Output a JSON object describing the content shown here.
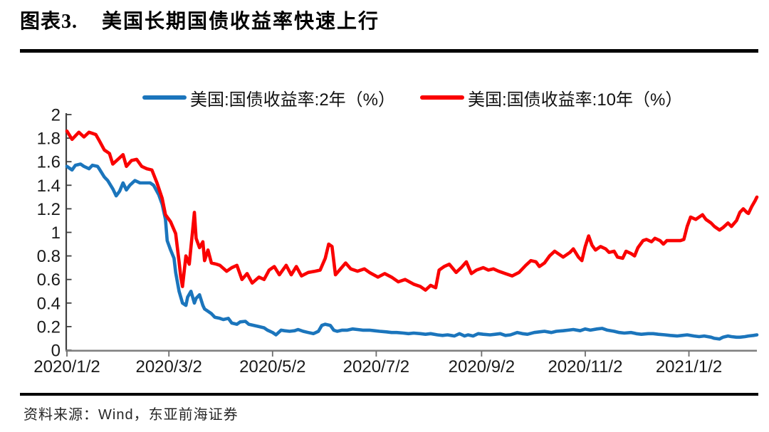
{
  "page": {
    "title_index": "图表3.",
    "title": "美国长期国债收益率快速上行",
    "source": "资料来源：Wind，东亚前海证券"
  },
  "chart_data": {
    "type": "line",
    "title": "美国长期国债收益率快速上行",
    "legend_position": "top",
    "grid": false,
    "x_axis": {
      "unit": "days since 2020/1/2",
      "range": [
        0,
        406
      ],
      "ticks": [
        0,
        60,
        121,
        182,
        244,
        305,
        366
      ],
      "tick_labels": [
        "2020/1/2",
        "2020/3/2",
        "2020/5/2",
        "2020/7/2",
        "2020/9/2",
        "2020/11/2",
        "2021/1/2"
      ]
    },
    "y_axis": {
      "range": [
        0,
        2
      ],
      "tick_step": 0.2,
      "tick_labels": [
        "0",
        "0.2",
        "0.4",
        "0.6",
        "0.8",
        "1",
        "1.2",
        "1.4",
        "1.6",
        "1.8",
        "2"
      ]
    },
    "axis_colors": {
      "y_axis_line": "#404040",
      "x_axis_line": "#808080"
    },
    "series": [
      {
        "name": "美国:国债收益率:2年（%）",
        "color": "#1B75BC",
        "points": [
          [
            0,
            1.56
          ],
          [
            3,
            1.53
          ],
          [
            5,
            1.57
          ],
          [
            8,
            1.58
          ],
          [
            10,
            1.56
          ],
          [
            13,
            1.54
          ],
          [
            15,
            1.57
          ],
          [
            18,
            1.56
          ],
          [
            19,
            1.54
          ],
          [
            22,
            1.47
          ],
          [
            24,
            1.44
          ],
          [
            27,
            1.37
          ],
          [
            29,
            1.31
          ],
          [
            31,
            1.35
          ],
          [
            33,
            1.42
          ],
          [
            35,
            1.36
          ],
          [
            37,
            1.4
          ],
          [
            40,
            1.44
          ],
          [
            43,
            1.42
          ],
          [
            46,
            1.42
          ],
          [
            49,
            1.42
          ],
          [
            51,
            1.4
          ],
          [
            54,
            1.32
          ],
          [
            56,
            1.24
          ],
          [
            58,
            1.11
          ],
          [
            59,
            0.93
          ],
          [
            61,
            0.85
          ],
          [
            63,
            0.78
          ],
          [
            64,
            0.66
          ],
          [
            66,
            0.5
          ],
          [
            68,
            0.4
          ],
          [
            70,
            0.38
          ],
          [
            71,
            0.45
          ],
          [
            73,
            0.5
          ],
          [
            75,
            0.4
          ],
          [
            76,
            0.44
          ],
          [
            78,
            0.47
          ],
          [
            80,
            0.38
          ],
          [
            81,
            0.35
          ],
          [
            83,
            0.33
          ],
          [
            85,
            0.31
          ],
          [
            87,
            0.28
          ],
          [
            90,
            0.27
          ],
          [
            92,
            0.26
          ],
          [
            95,
            0.27
          ],
          [
            97,
            0.23
          ],
          [
            100,
            0.22
          ],
          [
            102,
            0.24
          ],
          [
            105,
            0.245
          ],
          [
            107,
            0.22
          ],
          [
            110,
            0.21
          ],
          [
            113,
            0.2
          ],
          [
            116,
            0.19
          ],
          [
            118,
            0.17
          ],
          [
            121,
            0.15
          ],
          [
            123,
            0.13
          ],
          [
            126,
            0.17
          ],
          [
            128,
            0.165
          ],
          [
            131,
            0.16
          ],
          [
            134,
            0.165
          ],
          [
            136,
            0.175
          ],
          [
            139,
            0.16
          ],
          [
            142,
            0.15
          ],
          [
            145,
            0.14
          ],
          [
            148,
            0.16
          ],
          [
            150,
            0.21
          ],
          [
            152,
            0.22
          ],
          [
            155,
            0.21
          ],
          [
            157,
            0.17
          ],
          [
            159,
            0.16
          ],
          [
            162,
            0.17
          ],
          [
            165,
            0.17
          ],
          [
            168,
            0.18
          ],
          [
            171,
            0.175
          ],
          [
            174,
            0.17
          ],
          [
            178,
            0.17
          ],
          [
            181,
            0.165
          ],
          [
            184,
            0.16
          ],
          [
            188,
            0.155
          ],
          [
            191,
            0.15
          ],
          [
            194,
            0.15
          ],
          [
            198,
            0.145
          ],
          [
            201,
            0.14
          ],
          [
            204,
            0.145
          ],
          [
            208,
            0.14
          ],
          [
            211,
            0.135
          ],
          [
            214,
            0.14
          ],
          [
            218,
            0.13
          ],
          [
            221,
            0.125
          ],
          [
            224,
            0.13
          ],
          [
            228,
            0.12
          ],
          [
            231,
            0.14
          ],
          [
            234,
            0.12
          ],
          [
            236,
            0.13
          ],
          [
            239,
            0.12
          ],
          [
            242,
            0.14
          ],
          [
            245,
            0.135
          ],
          [
            249,
            0.13
          ],
          [
            252,
            0.135
          ],
          [
            255,
            0.14
          ],
          [
            258,
            0.125
          ],
          [
            261,
            0.13
          ],
          [
            265,
            0.15
          ],
          [
            268,
            0.14
          ],
          [
            271,
            0.135
          ],
          [
            275,
            0.15
          ],
          [
            278,
            0.155
          ],
          [
            281,
            0.16
          ],
          [
            285,
            0.15
          ],
          [
            288,
            0.16
          ],
          [
            292,
            0.165
          ],
          [
            295,
            0.17
          ],
          [
            298,
            0.175
          ],
          [
            302,
            0.165
          ],
          [
            305,
            0.18
          ],
          [
            308,
            0.17
          ],
          [
            312,
            0.18
          ],
          [
            315,
            0.185
          ],
          [
            318,
            0.17
          ],
          [
            322,
            0.16
          ],
          [
            325,
            0.15
          ],
          [
            328,
            0.145
          ],
          [
            332,
            0.15
          ],
          [
            335,
            0.14
          ],
          [
            338,
            0.135
          ],
          [
            342,
            0.14
          ],
          [
            345,
            0.14
          ],
          [
            348,
            0.135
          ],
          [
            352,
            0.13
          ],
          [
            355,
            0.125
          ],
          [
            359,
            0.12
          ],
          [
            362,
            0.125
          ],
          [
            365,
            0.13
          ],
          [
            369,
            0.12
          ],
          [
            372,
            0.115
          ],
          [
            375,
            0.12
          ],
          [
            379,
            0.11
          ],
          [
            381,
            0.1
          ],
          [
            384,
            0.095
          ],
          [
            386,
            0.11
          ],
          [
            389,
            0.12
          ],
          [
            391,
            0.115
          ],
          [
            394,
            0.11
          ],
          [
            396,
            0.11
          ],
          [
            399,
            0.115
          ],
          [
            401,
            0.12
          ],
          [
            404,
            0.125
          ],
          [
            406,
            0.13
          ]
        ]
      },
      {
        "name": "美国:国债收益率:10年（%）",
        "color": "#FA0000",
        "points": [
          [
            0,
            1.86
          ],
          [
            3,
            1.79
          ],
          [
            7,
            1.85
          ],
          [
            10,
            1.81
          ],
          [
            13,
            1.85
          ],
          [
            17,
            1.83
          ],
          [
            19,
            1.78
          ],
          [
            22,
            1.7
          ],
          [
            25,
            1.67
          ],
          [
            27,
            1.58
          ],
          [
            30,
            1.62
          ],
          [
            33,
            1.66
          ],
          [
            35,
            1.56
          ],
          [
            38,
            1.61
          ],
          [
            41,
            1.62
          ],
          [
            44,
            1.56
          ],
          [
            47,
            1.54
          ],
          [
            50,
            1.53
          ],
          [
            53,
            1.42
          ],
          [
            56,
            1.29
          ],
          [
            58,
            1.15
          ],
          [
            61,
            1.09
          ],
          [
            64,
            0.99
          ],
          [
            66,
            0.75
          ],
          [
            67,
            0.62
          ],
          [
            68,
            0.54
          ],
          [
            70,
            0.8
          ],
          [
            72,
            0.73
          ],
          [
            74,
            1.02
          ],
          [
            75,
            1.17
          ],
          [
            76,
            0.95
          ],
          [
            78,
            0.87
          ],
          [
            80,
            0.92
          ],
          [
            81,
            0.76
          ],
          [
            83,
            0.85
          ],
          [
            85,
            0.74
          ],
          [
            88,
            0.73
          ],
          [
            90,
            0.72
          ],
          [
            94,
            0.67
          ],
          [
            97,
            0.7
          ],
          [
            100,
            0.72
          ],
          [
            103,
            0.6
          ],
          [
            106,
            0.65
          ],
          [
            109,
            0.57
          ],
          [
            113,
            0.62
          ],
          [
            116,
            0.6
          ],
          [
            119,
            0.68
          ],
          [
            122,
            0.71
          ],
          [
            125,
            0.64
          ],
          [
            129,
            0.72
          ],
          [
            132,
            0.64
          ],
          [
            135,
            0.71
          ],
          [
            138,
            0.63
          ],
          [
            142,
            0.66
          ],
          [
            146,
            0.67
          ],
          [
            149,
            0.68
          ],
          [
            152,
            0.78
          ],
          [
            154,
            0.9
          ],
          [
            156,
            0.88
          ],
          [
            158,
            0.64
          ],
          [
            161,
            0.69
          ],
          [
            164,
            0.74
          ],
          [
            167,
            0.69
          ],
          [
            171,
            0.67
          ],
          [
            175,
            0.69
          ],
          [
            178,
            0.66
          ],
          [
            183,
            0.62
          ],
          [
            187,
            0.65
          ],
          [
            191,
            0.62
          ],
          [
            195,
            0.58
          ],
          [
            199,
            0.6
          ],
          [
            204,
            0.56
          ],
          [
            208,
            0.54
          ],
          [
            211,
            0.51
          ],
          [
            214,
            0.55
          ],
          [
            217,
            0.53
          ],
          [
            219,
            0.68
          ],
          [
            222,
            0.71
          ],
          [
            225,
            0.73
          ],
          [
            229,
            0.66
          ],
          [
            232,
            0.7
          ],
          [
            235,
            0.75
          ],
          [
            238,
            0.65
          ],
          [
            241,
            0.68
          ],
          [
            245,
            0.7
          ],
          [
            248,
            0.68
          ],
          [
            251,
            0.69
          ],
          [
            254,
            0.67
          ],
          [
            258,
            0.65
          ],
          [
            262,
            0.63
          ],
          [
            266,
            0.66
          ],
          [
            270,
            0.72
          ],
          [
            273,
            0.76
          ],
          [
            276,
            0.75
          ],
          [
            278,
            0.71
          ],
          [
            281,
            0.74
          ],
          [
            284,
            0.8
          ],
          [
            287,
            0.84
          ],
          [
            290,
            0.81
          ],
          [
            292,
            0.79
          ],
          [
            296,
            0.83
          ],
          [
            298,
            0.86
          ],
          [
            301,
            0.79
          ],
          [
            303,
            0.76
          ],
          [
            305,
            0.88
          ],
          [
            307,
            0.97
          ],
          [
            309,
            0.89
          ],
          [
            311,
            0.85
          ],
          [
            314,
            0.88
          ],
          [
            317,
            0.86
          ],
          [
            319,
            0.83
          ],
          [
            322,
            0.84
          ],
          [
            324,
            0.79
          ],
          [
            327,
            0.78
          ],
          [
            329,
            0.84
          ],
          [
            332,
            0.82
          ],
          [
            334,
            0.8
          ],
          [
            336,
            0.87
          ],
          [
            339,
            0.93
          ],
          [
            341,
            0.94
          ],
          [
            344,
            0.92
          ],
          [
            346,
            0.95
          ],
          [
            349,
            0.93
          ],
          [
            351,
            0.9
          ],
          [
            353,
            0.93
          ],
          [
            356,
            0.93
          ],
          [
            359,
            0.93
          ],
          [
            361,
            0.93
          ],
          [
            363,
            0.94
          ],
          [
            365,
            1.05
          ],
          [
            367,
            1.13
          ],
          [
            370,
            1.11
          ],
          [
            372,
            1.13
          ],
          [
            374,
            1.15
          ],
          [
            376,
            1.11
          ],
          [
            379,
            1.08
          ],
          [
            381,
            1.05
          ],
          [
            384,
            1.02
          ],
          [
            386,
            1.04
          ],
          [
            389,
            1.08
          ],
          [
            391,
            1.05
          ],
          [
            394,
            1.1
          ],
          [
            396,
            1.17
          ],
          [
            398,
            1.2
          ],
          [
            400,
            1.17
          ],
          [
            401,
            1.16
          ],
          [
            403,
            1.22
          ],
          [
            405,
            1.27
          ],
          [
            406,
            1.3
          ]
        ]
      }
    ]
  }
}
